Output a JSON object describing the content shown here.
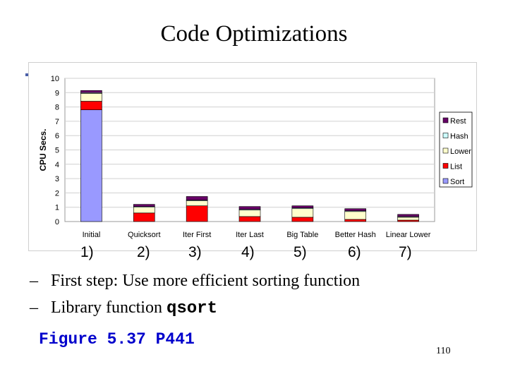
{
  "slide": {
    "title": "Code Optimizations",
    "step_labels": [
      "1)",
      "2)",
      "3)",
      "4)",
      "5)",
      "6)",
      "7)"
    ],
    "bullets": [
      {
        "dash": "–",
        "text": "First step: Use more efficient sorting function",
        "code": ""
      },
      {
        "dash": "–",
        "text": "Library function ",
        "code": "qsort"
      }
    ],
    "figure_ref": "Figure 5.37  P441",
    "page_number": "110"
  },
  "chart_data": {
    "type": "bar",
    "stacked": true,
    "ylabel": "CPU Secs.",
    "xlabel": "",
    "ylim": [
      0,
      10
    ],
    "yticks": [
      0,
      1,
      2,
      3,
      4,
      5,
      6,
      7,
      8,
      9,
      10
    ],
    "grid": true,
    "legend_position": "right",
    "categories": [
      "Initial",
      "Quicksort",
      "Iter First",
      "Iter Last",
      "Big Table",
      "Better Hash",
      "Linear Lower"
    ],
    "series": [
      {
        "name": "Sort",
        "color": "#9999ff",
        "values": [
          7.8,
          0.0,
          0.0,
          0.0,
          0.0,
          0.0,
          0.0
        ]
      },
      {
        "name": "List",
        "color": "#ff0000",
        "values": [
          0.6,
          0.6,
          1.1,
          0.35,
          0.3,
          0.15,
          0.1
        ]
      },
      {
        "name": "Lower",
        "color": "#ffffcc",
        "values": [
          0.55,
          0.4,
          0.35,
          0.45,
          0.6,
          0.55,
          0.2
        ]
      },
      {
        "name": "Hash",
        "color": "#ccffff",
        "values": [
          0.05,
          0.05,
          0.05,
          0.05,
          0.05,
          0.05,
          0.05
        ]
      },
      {
        "name": "Rest",
        "color": "#660066",
        "values": [
          0.15,
          0.15,
          0.25,
          0.2,
          0.15,
          0.15,
          0.15
        ]
      }
    ],
    "legend_order": [
      "Rest",
      "Hash",
      "Lower",
      "List",
      "Sort"
    ]
  }
}
